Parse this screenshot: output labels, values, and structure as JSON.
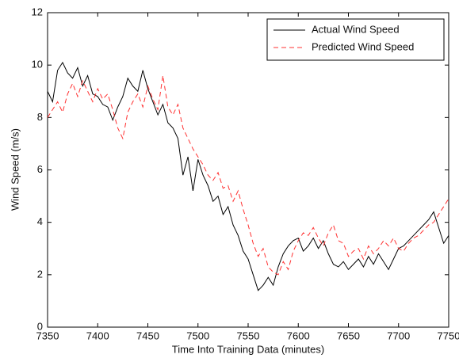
{
  "chart_data": {
    "type": "line",
    "x_label": "Time Into Training Data (minutes)",
    "y_label": "Wind Speed (m/s)",
    "x": [
      7350,
      7355,
      7360,
      7365,
      7370,
      7375,
      7380,
      7385,
      7390,
      7395,
      7400,
      7405,
      7410,
      7415,
      7420,
      7425,
      7430,
      7435,
      7440,
      7445,
      7450,
      7455,
      7460,
      7465,
      7470,
      7475,
      7480,
      7485,
      7490,
      7495,
      7500,
      7505,
      7510,
      7515,
      7520,
      7525,
      7530,
      7535,
      7540,
      7545,
      7550,
      7555,
      7560,
      7565,
      7570,
      7575,
      7580,
      7585,
      7590,
      7595,
      7600,
      7605,
      7610,
      7615,
      7620,
      7625,
      7630,
      7635,
      7640,
      7645,
      7650,
      7655,
      7660,
      7665,
      7670,
      7675,
      7680,
      7685,
      7690,
      7695,
      7700,
      7705,
      7710,
      7715,
      7720,
      7725,
      7730,
      7735,
      7740,
      7745,
      7750
    ],
    "series": [
      {
        "name": "Actual Wind Speed",
        "color": "#000000",
        "dash": "none",
        "values": [
          9.0,
          8.6,
          9.8,
          10.1,
          9.7,
          9.5,
          9.9,
          9.2,
          9.6,
          8.9,
          8.8,
          8.5,
          8.4,
          7.9,
          8.4,
          8.8,
          9.5,
          9.2,
          9.0,
          9.8,
          9.1,
          8.6,
          8.1,
          8.5,
          7.8,
          7.6,
          7.2,
          5.8,
          6.5,
          5.2,
          6.4,
          5.8,
          5.4,
          4.8,
          5.0,
          4.3,
          4.6,
          3.9,
          3.5,
          2.9,
          2.6,
          2.0,
          1.4,
          1.6,
          1.9,
          1.6,
          2.3,
          2.8,
          3.1,
          3.3,
          3.4,
          2.9,
          3.1,
          3.4,
          3.0,
          3.3,
          2.8,
          2.4,
          2.3,
          2.5,
          2.2,
          2.4,
          2.6,
          2.3,
          2.7,
          2.4,
          2.8,
          2.5,
          2.2,
          2.6,
          3.0,
          3.1,
          3.3,
          3.5,
          3.7,
          3.9,
          4.1,
          4.4,
          3.8,
          3.2,
          3.5
        ]
      },
      {
        "name": "Predicted Wind Speed",
        "color": "#ff3030",
        "dash": "6 4",
        "values": [
          8.0,
          8.3,
          8.6,
          8.2,
          8.9,
          9.3,
          8.8,
          9.4,
          9.0,
          8.6,
          9.1,
          8.7,
          8.9,
          8.3,
          7.6,
          7.2,
          8.2,
          8.6,
          8.9,
          8.4,
          9.2,
          8.7,
          8.3,
          9.6,
          8.4,
          8.1,
          8.5,
          7.6,
          7.2,
          6.8,
          6.5,
          6.2,
          5.8,
          5.6,
          5.9,
          5.3,
          5.4,
          4.8,
          5.2,
          4.5,
          3.9,
          3.2,
          2.7,
          3.0,
          2.3,
          2.1,
          2.0,
          2.5,
          2.2,
          2.9,
          3.3,
          3.6,
          3.5,
          3.8,
          3.4,
          3.1,
          3.6,
          3.9,
          3.3,
          3.2,
          2.7,
          2.9,
          3.0,
          2.6,
          3.1,
          2.8,
          3.0,
          3.3,
          3.1,
          3.4,
          3.0,
          2.9,
          3.2,
          3.4,
          3.5,
          3.7,
          3.9,
          4.0,
          4.3,
          4.6,
          4.9
        ]
      }
    ],
    "xlim": [
      7350,
      7750
    ],
    "xticks": [
      7350,
      7400,
      7450,
      7500,
      7550,
      7600,
      7650,
      7700,
      7750
    ],
    "ylim": [
      0,
      12
    ],
    "yticks": [
      0,
      2,
      4,
      6,
      8,
      10,
      12
    ],
    "legend": "top-right",
    "grid": false
  }
}
